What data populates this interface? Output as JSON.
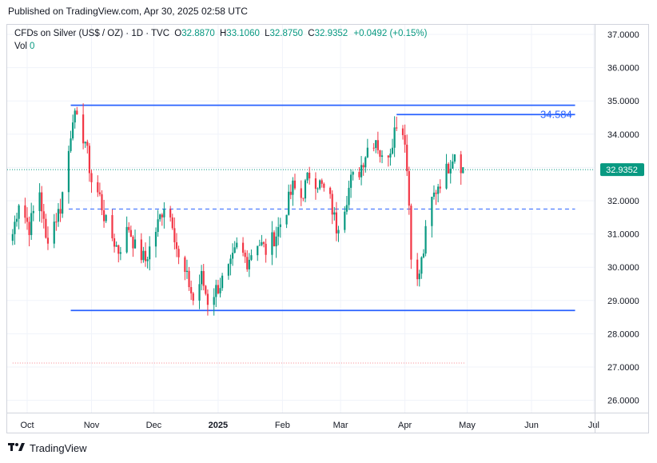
{
  "header": {
    "published": "Published on TradingView.com, Apr 30, 2025 02:58 UTC"
  },
  "legend": {
    "symbol": "CFDs on Silver (US$ / OZ) · 1D · TVC",
    "open_label": "O",
    "open": "32.8870",
    "high_label": "H",
    "high": "33.1060",
    "low_label": "L",
    "low": "32.8750",
    "close_label": "C",
    "close": "32.9352",
    "change": "+0.0492 (+0.15%)",
    "vol_label": "Vol",
    "vol_value": "0"
  },
  "footer": {
    "brand": "TradingView",
    "logo_icon": "tradingview-logo-icon"
  },
  "colors": {
    "up": "#089981",
    "down": "#f23645",
    "line": "#2962ff",
    "grid": "#f0f3fa"
  },
  "chart_data": {
    "type": "candlestick",
    "x_ticks": [
      "Oct",
      "Nov",
      "Dec",
      "2025",
      "Feb",
      "Mar",
      "Apr",
      "May",
      "Jun",
      "Jul"
    ],
    "y_ticks": [
      "37.0000",
      "36.0000",
      "35.0000",
      "34.0000",
      "33.0000",
      "32.0000",
      "31.0000",
      "30.0000",
      "29.0000",
      "28.0000",
      "27.0000",
      "26.0000"
    ],
    "ylim": [
      25.6,
      37.5
    ],
    "last_price": 32.9352,
    "last_price_label": "32.9352",
    "annotation_label": "34.584",
    "annotation_value": 34.584,
    "horizontal_lines": [
      {
        "value": 34.87,
        "from": "2024-10-22",
        "to": "2025-06-22",
        "style": "solid"
      },
      {
        "value": 34.59,
        "from": "2025-03-28",
        "to": "2025-06-22",
        "style": "solid"
      },
      {
        "value": 31.75,
        "from": "2024-10-21",
        "to": "2025-06-22",
        "style": "dashed"
      },
      {
        "value": 28.7,
        "from": "2024-10-22",
        "to": "2025-06-22",
        "style": "solid"
      },
      {
        "value": 27.12,
        "from": "2024-09-24",
        "to": "2025-04-30",
        "style": "dotted"
      }
    ],
    "anchors": [
      [
        "2024-09-24",
        31.0
      ],
      [
        "2024-09-27",
        32.0
      ],
      [
        "2024-10-02",
        31.2
      ],
      [
        "2024-10-07",
        32.3
      ],
      [
        "2024-10-10",
        30.8
      ],
      [
        "2024-10-17",
        31.8
      ],
      [
        "2024-10-21",
        33.5
      ],
      [
        "2024-10-23",
        34.6
      ],
      [
        "2024-10-29",
        33.8
      ],
      [
        "2024-11-01",
        32.6
      ],
      [
        "2024-11-05",
        32.1
      ],
      [
        "2024-11-08",
        31.3
      ],
      [
        "2024-11-14",
        30.5
      ],
      [
        "2024-11-19",
        31.2
      ],
      [
        "2024-11-22",
        30.6
      ],
      [
        "2024-11-27",
        30.2
      ],
      [
        "2024-12-03",
        31.3
      ],
      [
        "2024-12-06",
        31.9
      ],
      [
        "2024-12-10",
        31.4
      ],
      [
        "2024-12-13",
        30.2
      ],
      [
        "2024-12-18",
        29.5
      ],
      [
        "2024-12-20",
        29.0
      ],
      [
        "2024-12-24",
        29.7
      ],
      [
        "2024-12-27",
        29.0
      ],
      [
        "2025-01-02",
        29.5
      ],
      [
        "2025-01-07",
        30.0
      ],
      [
        "2025-01-10",
        30.6
      ],
      [
        "2025-01-15",
        30.2
      ],
      [
        "2025-01-20",
        30.8
      ],
      [
        "2025-01-24",
        30.5
      ],
      [
        "2025-01-29",
        31.0
      ],
      [
        "2025-02-03",
        31.8
      ],
      [
        "2025-02-06",
        32.4
      ],
      [
        "2025-02-10",
        32.1
      ],
      [
        "2025-02-14",
        32.8
      ],
      [
        "2025-02-19",
        32.5
      ],
      [
        "2025-02-24",
        32.0
      ],
      [
        "2025-02-27",
        31.2
      ],
      [
        "2025-03-03",
        31.9
      ],
      [
        "2025-03-06",
        32.6
      ],
      [
        "2025-03-10",
        32.9
      ],
      [
        "2025-03-14",
        33.6
      ],
      [
        "2025-03-18",
        33.9
      ],
      [
        "2025-03-21",
        33.2
      ],
      [
        "2025-03-25",
        33.6
      ],
      [
        "2025-03-28",
        34.4
      ],
      [
        "2025-04-01",
        33.9
      ],
      [
        "2025-04-03",
        31.9
      ],
      [
        "2025-04-04",
        30.5
      ],
      [
        "2025-04-07",
        29.5
      ],
      [
        "2025-04-10",
        30.5
      ],
      [
        "2025-04-11",
        31.0
      ],
      [
        "2025-04-14",
        32.0
      ],
      [
        "2025-04-17",
        32.5
      ],
      [
        "2025-04-21",
        32.9
      ],
      [
        "2025-04-23",
        33.2
      ],
      [
        "2025-04-25",
        33.5
      ],
      [
        "2025-04-29",
        32.95
      ]
    ]
  }
}
